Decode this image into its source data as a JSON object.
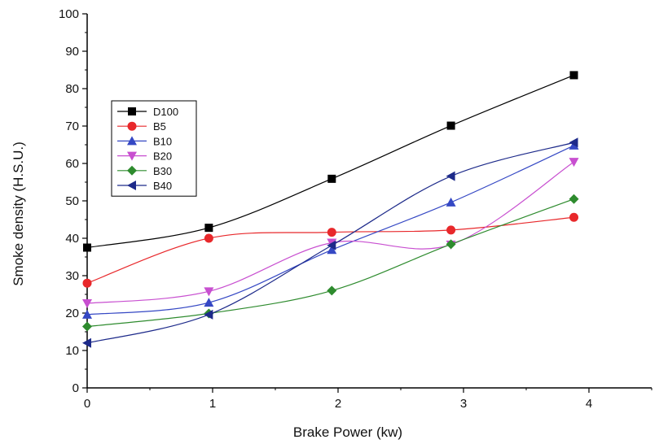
{
  "chart_data": {
    "type": "line",
    "xlabel": "Brake Power (kw)",
    "ylabel": "Smoke density (H.S.U.)",
    "xlim": [
      0,
      4.5
    ],
    "ylim": [
      0,
      100
    ],
    "x_ticks": [
      "0",
      "1",
      "2",
      "3",
      "4"
    ],
    "y_ticks": [
      "0",
      "10",
      "20",
      "30",
      "40",
      "50",
      "60",
      "70",
      "80",
      "90",
      "100"
    ],
    "grid": false,
    "legend_position": "top-left",
    "series": [
      {
        "name": "D100",
        "color": "#000000",
        "marker": "square",
        "x": [
          0,
          0.97,
          1.95,
          2.9,
          3.88
        ],
        "y": [
          37.5,
          42.8,
          55.9,
          70.1,
          83.6
        ]
      },
      {
        "name": "B5",
        "color": "#e8282b",
        "marker": "circle",
        "x": [
          0,
          0.97,
          1.95,
          2.9,
          3.88
        ],
        "y": [
          28.0,
          40.0,
          41.6,
          42.2,
          45.6
        ]
      },
      {
        "name": "B10",
        "color": "#3548c4",
        "marker": "triangle-up",
        "x": [
          0,
          0.97,
          1.95,
          2.9,
          3.88
        ],
        "y": [
          19.6,
          22.8,
          36.9,
          49.6,
          64.8
        ]
      },
      {
        "name": "B20",
        "color": "#c84fd0",
        "marker": "triangle-down",
        "x": [
          0,
          0.97,
          1.95,
          2.9,
          3.88
        ],
        "y": [
          22.6,
          25.8,
          38.8,
          38.3,
          60.4
        ]
      },
      {
        "name": "B30",
        "color": "#2e8b2e",
        "marker": "diamond",
        "x": [
          0,
          0.97,
          1.95,
          2.9,
          3.88
        ],
        "y": [
          16.4,
          19.9,
          26.0,
          38.4,
          50.5
        ]
      },
      {
        "name": "B40",
        "color": "#1d2a8a",
        "marker": "triangle-left",
        "x": [
          0,
          0.97,
          1.95,
          2.9,
          3.88
        ],
        "y": [
          12.0,
          19.6,
          38.1,
          56.6,
          65.6
        ]
      }
    ]
  }
}
